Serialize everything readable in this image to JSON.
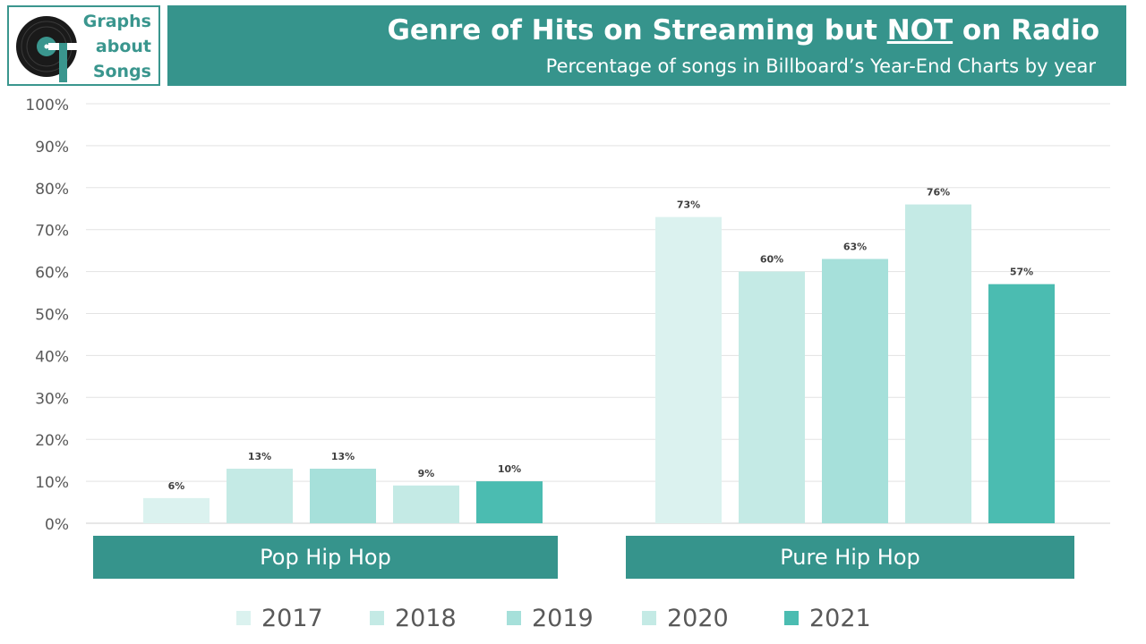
{
  "logo": {
    "line1": "Graphs",
    "line2": "about",
    "line3": "Songs"
  },
  "title": {
    "pre": "Genre of Hits on Streaming but ",
    "emph": "NOT",
    "post": " on Radio"
  },
  "subtitle": "Percentage of songs in Billboard’s Year-End Charts by year",
  "chart_data": {
    "type": "bar",
    "title": "Genre of Hits on Streaming but NOT on Radio",
    "subtitle": "Percentage of songs in Billboard’s Year-End Charts by year",
    "categories": [
      "Pop Hip Hop",
      "Pure  Hip Hop"
    ],
    "series": [
      {
        "name": "2017",
        "values": [
          6,
          73
        ],
        "labels": [
          "6%",
          "73%"
        ],
        "color": "#dbf2ef"
      },
      {
        "name": "2018",
        "values": [
          13,
          60
        ],
        "labels": [
          "13%",
          "60%"
        ],
        "color": "#c4eae5"
      },
      {
        "name": "2019",
        "values": [
          13,
          63
        ],
        "labels": [
          "13%",
          "63%"
        ],
        "color": "#a6e0da"
      },
      {
        "name": "2020",
        "values": [
          9,
          76
        ],
        "labels": [
          "9%",
          "76%"
        ],
        "color": "#c4eae5"
      },
      {
        "name": "2021",
        "values": [
          10,
          57
        ],
        "labels": [
          "10%",
          "57%"
        ],
        "color": "#4bbcb1"
      }
    ],
    "yticks": [
      "0%",
      "10%",
      "20%",
      "30%",
      "40%",
      "50%",
      "60%",
      "70%",
      "80%",
      "90%",
      "100%"
    ],
    "ylim": [
      0,
      100
    ],
    "grid": true,
    "legend": "bottom"
  }
}
